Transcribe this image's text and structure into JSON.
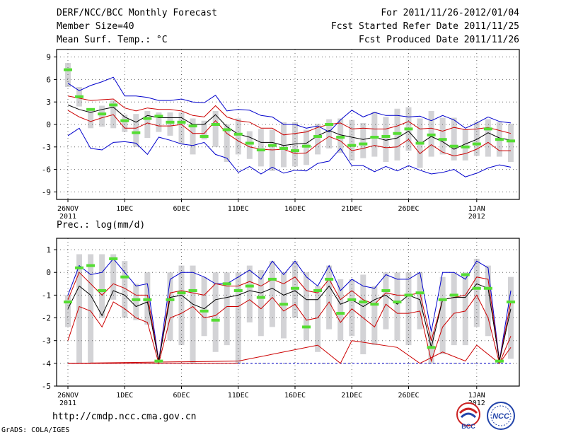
{
  "header": {
    "title": "DERF/NCC/BCC Monthly Forecast",
    "member_size": "Member Size=40",
    "variable_1": "Mean Surf. Temp.: °C",
    "period": "For 2011/11/26-2012/01/04",
    "fcst_started": "Fcst Started Refer Date 2011/11/25",
    "fcst_produced": "Fcst Produced Date 2011/11/26"
  },
  "footer": {
    "url": "http://cmdp.ncc.cma.gov.cn",
    "credit": "GrADS: COLA/IGES",
    "logo_left_text": "BCC",
    "logo_right_text": "NCC"
  },
  "colors": {
    "ensemble_max_min": "#0000cc",
    "ensemble_spread": "#cc0000",
    "ensemble_mean": "#000000",
    "observation": "#55dd33",
    "box": "#d3d3d6",
    "grid": "#666666"
  },
  "chart_data": [
    {
      "type": "box",
      "variable": "Mean Surf. Temp.: °C",
      "ylim": [
        -10,
        10
      ],
      "yticks": [
        9,
        6,
        3,
        0,
        -3,
        -6,
        -9
      ],
      "xticks": [
        {
          "day": 0,
          "label": "26NOV",
          "sub": "2011"
        },
        {
          "day": 5,
          "label": "1DEC",
          "sub": ""
        },
        {
          "day": 10,
          "label": "6DEC",
          "sub": ""
        },
        {
          "day": 15,
          "label": "11DEC",
          "sub": ""
        },
        {
          "day": 20,
          "label": "16DEC",
          "sub": ""
        },
        {
          "day": 25,
          "label": "21DEC",
          "sub": ""
        },
        {
          "day": 30,
          "label": "26DEC",
          "sub": ""
        },
        {
          "day": 36,
          "label": "1JAN",
          "sub": "2012"
        }
      ],
      "days": 40,
      "max": [
        5.5,
        4.5,
        5.2,
        5.7,
        6.3,
        3.8,
        3.8,
        3.6,
        3.2,
        3.2,
        3.4,
        3.0,
        2.9,
        3.9,
        1.8,
        2.0,
        1.9,
        1.2,
        1.0,
        0.0,
        0.0,
        -0.5,
        -0.2,
        -1.0,
        0.6,
        1.9,
        1.0,
        1.6,
        1.2,
        1.2,
        1.0,
        1.1,
        0.5,
        1.2,
        0.6,
        -0.5,
        0.2,
        1.0,
        0.4,
        0.2
      ],
      "min": [
        -1.5,
        -0.5,
        -3.2,
        -3.4,
        -2.4,
        -2.3,
        -2.5,
        -4.0,
        -1.7,
        -2.1,
        -2.6,
        -2.8,
        -2.4,
        -4.0,
        -4.5,
        -6.4,
        -5.6,
        -6.6,
        -5.7,
        -6.5,
        -6.1,
        -6.2,
        -5.2,
        -4.9,
        -3.2,
        -5.5,
        -5.5,
        -6.3,
        -5.6,
        -6.2,
        -5.5,
        -6.1,
        -6.6,
        -6.4,
        -6.0,
        -7.0,
        -6.5,
        -5.8,
        -5.4,
        -5.7
      ],
      "upper": [
        3.8,
        3.5,
        3.2,
        3.3,
        3.4,
        2.2,
        1.8,
        2.2,
        2.0,
        2.0,
        1.8,
        1.2,
        1.0,
        2.5,
        1.0,
        0.5,
        0.3,
        -0.5,
        -0.5,
        -1.4,
        -1.2,
        -1.0,
        -0.4,
        0.0,
        0.2,
        -0.6,
        -0.5,
        -0.6,
        -0.6,
        -0.2,
        0.4,
        -0.6,
        -0.5,
        -0.9,
        -0.4,
        -0.7,
        -0.6,
        -0.4,
        -0.8,
        -1.2
      ],
      "mean": [
        2.6,
        2.0,
        1.6,
        2.0,
        2.3,
        1.0,
        0.3,
        1.2,
        0.9,
        0.9,
        0.9,
        0.0,
        0.0,
        1.3,
        -0.3,
        -1.3,
        -1.7,
        -2.4,
        -2.4,
        -2.8,
        -2.6,
        -2.5,
        -1.5,
        -0.8,
        -1.4,
        -1.7,
        -2.0,
        -1.7,
        -2.1,
        -1.8,
        -0.9,
        -2.6,
        -1.6,
        -2.3,
        -3.3,
        -2.6,
        -2.0,
        -1.1,
        -1.8,
        -2.1
      ],
      "lower": [
        1.9,
        1.0,
        0.4,
        0.9,
        1.3,
        -0.5,
        -0.5,
        0.2,
        -0.2,
        -0.2,
        0.0,
        -1.2,
        -1.2,
        0.5,
        -1.2,
        -2.2,
        -3.0,
        -3.3,
        -3.4,
        -3.3,
        -3.9,
        -3.8,
        -2.6,
        -1.6,
        -2.2,
        -3.5,
        -3.2,
        -2.8,
        -3.1,
        -3.0,
        -2.0,
        -3.9,
        -2.7,
        -3.7,
        -4.2,
        -3.9,
        -3.3,
        -2.4,
        -3.5,
        -3.5
      ],
      "box_hi": [
        8.2,
        5.0,
        1.8,
        2.5,
        3.2,
        1.3,
        1.4,
        1.8,
        1.6,
        1.6,
        1.6,
        0.8,
        0.5,
        1.8,
        0.0,
        0.8,
        -0.9,
        -0.6,
        -0.7,
        0.3,
        0.3,
        -0.7,
        0.1,
        0.7,
        0.8,
        0.6,
        0.2,
        1.7,
        1.0,
        2.1,
        2.3,
        0.8,
        1.8,
        0.9,
        0.9,
        -0.6,
        0.4,
        0.7,
        0.3,
        0.1
      ],
      "box_lo": [
        5.0,
        2.4,
        -0.5,
        -0.3,
        -0.5,
        -1.0,
        -3.0,
        -1.8,
        -1.0,
        -1.5,
        -2.6,
        -4.0,
        -2.0,
        -3.0,
        -5.0,
        -4.0,
        -4.6,
        -5.6,
        -6.2,
        -5.7,
        -5.6,
        -5.4,
        -4.0,
        -3.2,
        -3.8,
        -4.8,
        -4.5,
        -4.3,
        -5.0,
        -4.8,
        -3.5,
        -5.8,
        -4.3,
        -4.0,
        -4.8,
        -4.8,
        -4.2,
        -4.3,
        -4.3,
        -5.0
      ],
      "obs": [
        7.3,
        3.7,
        2.0,
        1.4,
        2.6,
        0.5,
        -1.1,
        0.8,
        1.1,
        0.3,
        0.3,
        -0.2,
        -1.6,
        0.0,
        -0.7,
        -1.3,
        -2.5,
        -3.4,
        -2.8,
        -3.2,
        -3.5,
        -2.9,
        -1.6,
        0.0,
        -1.7,
        -2.8,
        -2.6,
        -1.7,
        -1.6,
        -1.2,
        -0.6,
        -2.5,
        -1.4,
        -2.0,
        -2.9,
        -3.0,
        -2.6,
        -0.6,
        -2.0,
        -2.2
      ]
    },
    {
      "type": "box",
      "variable": "Prec.: log(mm/d)",
      "ylim": [
        -5,
        1.5
      ],
      "yticks": [
        1,
        0,
        -1,
        -2,
        -3,
        -4,
        -5
      ],
      "xticks": [
        {
          "day": 0,
          "label": "26NOV",
          "sub": "2011"
        },
        {
          "day": 5,
          "label": "1DEC",
          "sub": ""
        },
        {
          "day": 10,
          "label": "6DEC",
          "sub": ""
        },
        {
          "day": 15,
          "label": "11DEC",
          "sub": ""
        },
        {
          "day": 20,
          "label": "16DEC",
          "sub": ""
        },
        {
          "day": 25,
          "label": "21DEC",
          "sub": ""
        },
        {
          "day": 30,
          "label": "26DEC",
          "sub": ""
        },
        {
          "day": 36,
          "label": "1JAN",
          "sub": "2012"
        }
      ],
      "days": 40,
      "max": [
        -1.0,
        0.3,
        -0.1,
        0.0,
        0.6,
        0.0,
        -0.6,
        -0.5,
        -3.9,
        -0.3,
        0.0,
        0.0,
        -0.2,
        -0.5,
        -0.5,
        -0.2,
        0.1,
        -0.3,
        0.5,
        -0.1,
        0.5,
        -0.2,
        -0.6,
        0.3,
        -0.8,
        -0.3,
        -0.6,
        -0.7,
        -0.1,
        -0.3,
        -0.3,
        0.0,
        -2.6,
        0.0,
        0.0,
        -0.3,
        0.5,
        0.2,
        -3.9,
        -0.8
      ],
      "upper": [
        -1.2,
        0.0,
        -0.5,
        -1.0,
        -0.5,
        -0.7,
        -1.0,
        -1.0,
        -3.9,
        -0.9,
        -0.8,
        -0.9,
        -1.0,
        -0.5,
        -0.6,
        -0.6,
        -0.4,
        -0.6,
        -0.3,
        -0.5,
        -0.2,
        -0.8,
        -0.9,
        -0.3,
        -1.2,
        -0.8,
        -1.2,
        -1.4,
        -0.9,
        -1.0,
        -1.0,
        -0.9,
        -3.0,
        -1.2,
        -1.1,
        -1.0,
        -0.2,
        -0.3,
        -3.9,
        -1.3
      ],
      "mean": [
        -1.6,
        -0.6,
        -1.0,
        -1.9,
        -0.8,
        -1.0,
        -1.5,
        -1.3,
        -3.9,
        -1.1,
        -1.0,
        -1.4,
        -1.6,
        -1.2,
        -1.1,
        -1.0,
        -0.8,
        -0.9,
        -0.7,
        -1.0,
        -0.8,
        -1.2,
        -1.2,
        -0.6,
        -1.4,
        -1.2,
        -1.5,
        -1.2,
        -1.0,
        -1.4,
        -1.0,
        -1.2,
        -3.3,
        -1.2,
        -1.1,
        -1.1,
        -0.5,
        -0.7,
        -3.9,
        -1.6
      ],
      "lower": [
        -3.0,
        -1.5,
        -1.7,
        -2.4,
        -1.3,
        -1.6,
        -2.0,
        -2.2,
        -4.0,
        -2.0,
        -1.8,
        -1.5,
        -2.0,
        -1.9,
        -1.5,
        -1.5,
        -1.2,
        -1.6,
        -1.1,
        -1.7,
        -1.4,
        -2.1,
        -2.0,
        -1.3,
        -2.2,
        -1.6,
        -2.0,
        -2.4,
        -1.4,
        -1.8,
        -1.8,
        -1.7,
        -3.9,
        -2.4,
        -1.8,
        -1.7,
        -1.0,
        -2.0,
        -4.0,
        -2.8
      ],
      "box_hi": [
        -1.0,
        0.8,
        0.8,
        0.8,
        0.8,
        0.5,
        -0.5,
        0.0,
        -3.9,
        0.0,
        0.3,
        0.3,
        -0.2,
        0.0,
        0.0,
        0.0,
        0.3,
        0.1,
        0.5,
        0.0,
        0.5,
        0.0,
        -0.6,
        0.3,
        -0.3,
        -0.3,
        -0.1,
        -0.6,
        0.0,
        0.0,
        0.0,
        0.0,
        -2.6,
        -0.2,
        0.0,
        0.0,
        0.6,
        0.3,
        -3.9,
        -0.2
      ],
      "box_lo": [
        -2.4,
        -4.0,
        -4.0,
        -2.0,
        -1.2,
        -2.0,
        -2.1,
        -2.3,
        -4.0,
        -3.0,
        -3.2,
        -4.0,
        -2.8,
        -3.5,
        -3.2,
        -4.0,
        -2.2,
        -2.8,
        -2.4,
        -2.9,
        -2.0,
        -3.0,
        -3.5,
        -2.5,
        -3.0,
        -2.8,
        -3.6,
        -3.2,
        -2.5,
        -3.0,
        -3.2,
        -2.5,
        -4.0,
        -3.6,
        -3.2,
        -3.2,
        -2.4,
        -2.8,
        -4.0,
        -3.8
      ],
      "obs": [
        -1.3,
        0.2,
        0.3,
        -0.8,
        0.6,
        -0.2,
        -1.2,
        -1.2,
        -3.9,
        -1.2,
        -0.9,
        -0.8,
        -1.7,
        -2.1,
        -0.5,
        -0.8,
        -0.6,
        -1.1,
        -0.3,
        -1.4,
        -0.7,
        -2.4,
        -0.8,
        -0.3,
        -1.8,
        -1.2,
        -1.3,
        -1.4,
        -0.8,
        -1.3,
        -1.0,
        -0.9,
        -3.3,
        -1.2,
        -1.0,
        -0.1,
        -0.7,
        -0.7,
        -3.9,
        -1.3
      ],
      "min_line": {
        "days": [
          0,
          15,
          19,
          22,
          24,
          25,
          29,
          31,
          33,
          35,
          36,
          38,
          39
        ],
        "values": [
          -4.0,
          -3.9,
          -3.5,
          -3.2,
          -4.0,
          -3.0,
          -3.3,
          -4.0,
          -3.5,
          -3.9,
          -3.2,
          -4.0,
          -3.3
        ]
      },
      "floor_value": -4.0
    }
  ],
  "labels": {
    "prec_title": "Prec.: log(mm/d)"
  }
}
